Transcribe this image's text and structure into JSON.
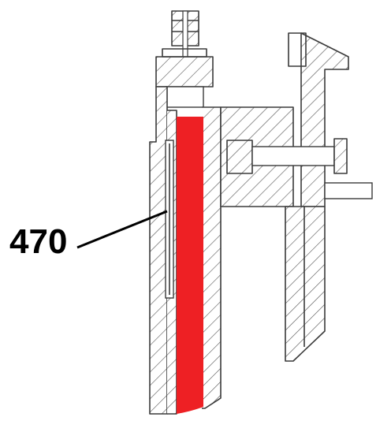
{
  "figure": {
    "reference_label": "470",
    "highlight_color": "#ee2024",
    "line_color": "#3a3a3a",
    "label_color": "#000000"
  }
}
